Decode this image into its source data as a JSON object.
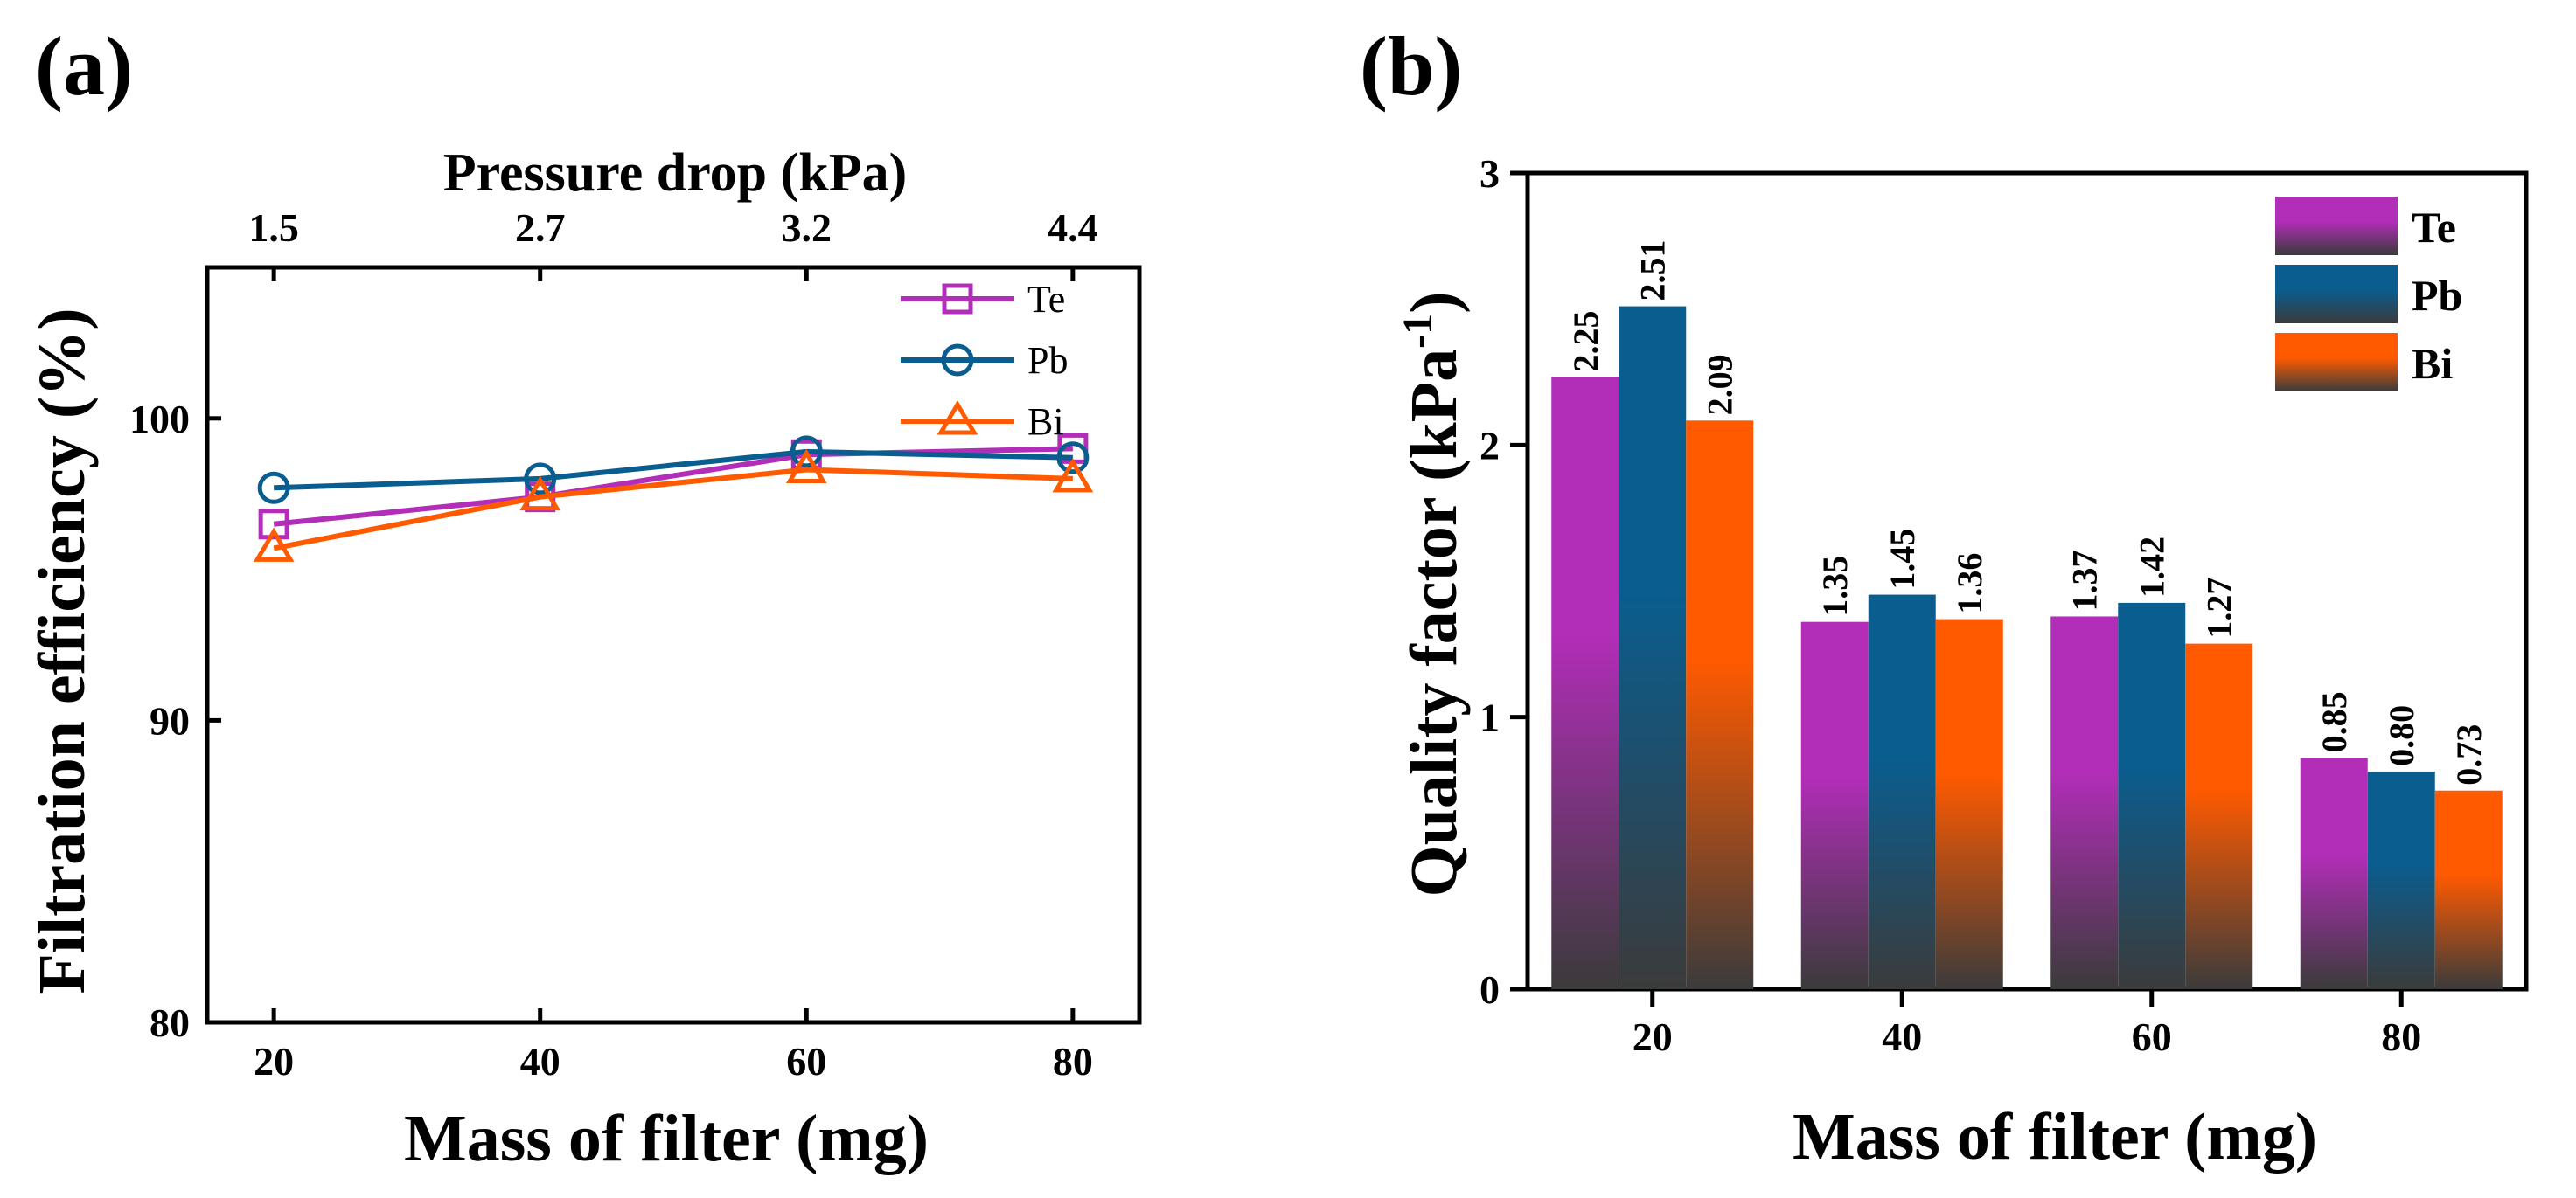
{
  "colors": {
    "Te": "#b22db8",
    "Pb": "#0a5d8f",
    "Bi": "#ff5a00",
    "bar_base": "#3b3b3b",
    "axis": "#000000"
  },
  "panel_a": {
    "label": "(a)",
    "chart_data": {
      "type": "line",
      "x": [
        20,
        40,
        60,
        80
      ],
      "xlabel": "Mass of filter (mg)",
      "ylabel": "Filtration efficiency (%)",
      "top_xlabel": "Pressure drop (kPa)",
      "top_ticks": [
        "1.5",
        "2.7",
        "3.2",
        "4.4"
      ],
      "x_ticks": [
        "20",
        "40",
        "60",
        "80"
      ],
      "y_ticks": [
        "80",
        "90",
        "100"
      ],
      "xlim": [
        15,
        85
      ],
      "ylim": [
        80,
        105
      ],
      "legend_position": "top-right",
      "series": [
        {
          "name": "Te",
          "marker": "square",
          "values": [
            96.5,
            97.4,
            98.8,
            99.0
          ]
        },
        {
          "name": "Pb",
          "marker": "circle",
          "values": [
            97.7,
            98.0,
            98.9,
            98.7
          ]
        },
        {
          "name": "Bi",
          "marker": "triangle",
          "values": [
            95.7,
            97.4,
            98.3,
            98.0
          ]
        }
      ]
    }
  },
  "panel_b": {
    "label": "(b)",
    "chart_data": {
      "type": "bar",
      "categories": [
        "20",
        "40",
        "60",
        "80"
      ],
      "xlabel": "Mass of filter (mg)",
      "ylabel": "Quality factor (kPa",
      "ylabel_sup": "-1",
      "ylabel_end": ")",
      "y_ticks": [
        "0",
        "1",
        "2",
        "3"
      ],
      "ylim": [
        0,
        3
      ],
      "legend_position": "top-right",
      "series": [
        {
          "name": "Te",
          "values": [
            2.25,
            1.35,
            1.37,
            0.85
          ],
          "labels": [
            "2.25",
            "1.35",
            "1.37",
            "0.85"
          ]
        },
        {
          "name": "Pb",
          "values": [
            2.51,
            1.45,
            1.42,
            0.8
          ],
          "labels": [
            "2.51",
            "1.45",
            "1.42",
            "0.80"
          ]
        },
        {
          "name": "Bi",
          "values": [
            2.09,
            1.36,
            1.27,
            0.73
          ],
          "labels": [
            "2.09",
            "1.36",
            "1.27",
            "0.73"
          ]
        }
      ]
    }
  }
}
